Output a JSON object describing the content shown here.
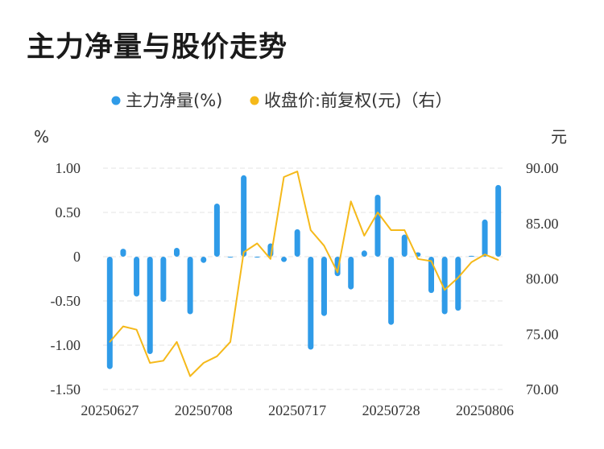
{
  "page_title": "主力净量与股价走势",
  "chart_data": {
    "type": "bar+line",
    "title": "主力净量与股价走势",
    "legend": [
      {
        "name": "主力净量(%)",
        "color": "#2f9be8"
      },
      {
        "name": "收盘价:前复权(元)（右）",
        "color": "#f5b91a"
      }
    ],
    "y_left_unit": "%",
    "y_right_unit": "元",
    "y_left_ticks": [
      "1.00",
      "0.50",
      "0",
      "-0.50",
      "-1.00",
      "-1.50"
    ],
    "y_left_range": [
      -1.5,
      1.0
    ],
    "y_right_ticks": [
      "90.00",
      "85.00",
      "80.00",
      "75.00",
      "70.00"
    ],
    "y_right_range": [
      70,
      90
    ],
    "x_tick_labels": [
      "20250627",
      "20250708",
      "20250717",
      "20250728",
      "20250806"
    ],
    "x_tick_indices": [
      0,
      7,
      14,
      21,
      28
    ],
    "series": [
      {
        "name": "主力净量(%)",
        "type": "bar",
        "color": "#2f9be8",
        "values": [
          -1.27,
          0.09,
          -0.45,
          -1.1,
          -0.51,
          0.1,
          -0.65,
          -0.07,
          0.6,
          -0.01,
          0.92,
          -0.01,
          0.15,
          -0.06,
          0.31,
          -1.05,
          -0.67,
          -0.22,
          -0.37,
          0.07,
          0.7,
          -0.77,
          0.25,
          0.05,
          -0.41,
          -0.65,
          -0.61,
          0.01,
          0.42,
          0.81
        ]
      },
      {
        "name": "收盘价:前复权(元)（右）",
        "type": "line",
        "color": "#f5b91a",
        "values": [
          74.3,
          75.7,
          75.4,
          72.4,
          72.6,
          74.3,
          71.2,
          72.4,
          73.0,
          74.3,
          82.4,
          83.2,
          81.8,
          89.2,
          89.7,
          84.4,
          83.0,
          80.6,
          87.0,
          83.9,
          86.0,
          84.4,
          84.4,
          81.8,
          81.6,
          79.0,
          80.1,
          81.5,
          82.2,
          81.7
        ]
      }
    ]
  }
}
